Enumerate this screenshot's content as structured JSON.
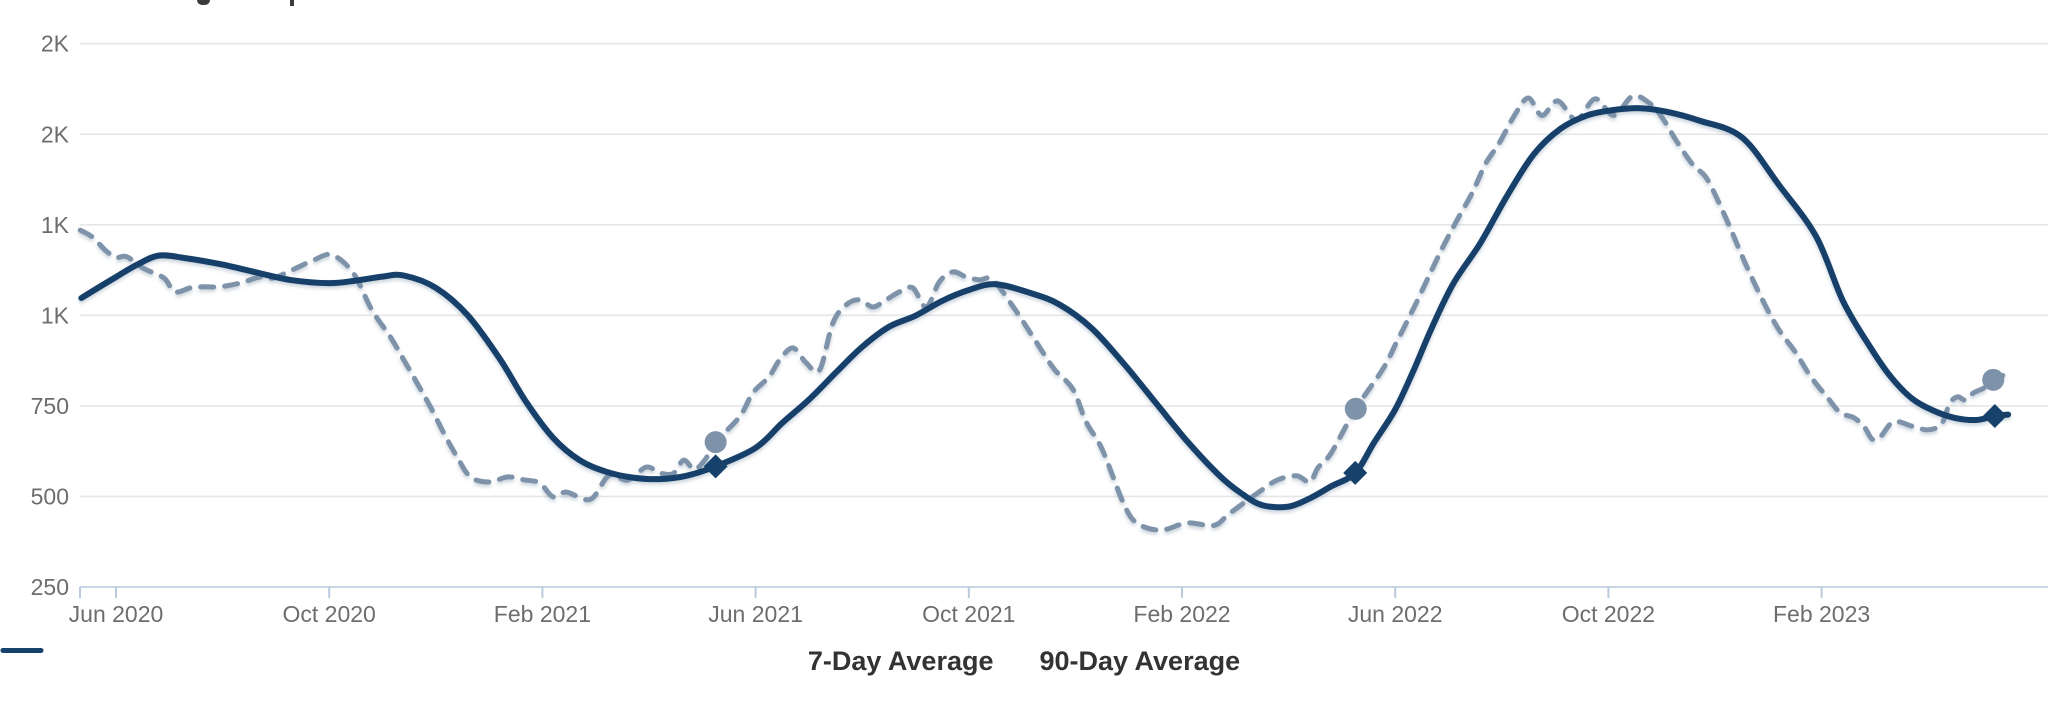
{
  "theme": {
    "background": "#FFFFFF",
    "grid_color": "#E6E6E6",
    "axis_line_color": "#C9D6E6",
    "tick_color": "#B9CADE",
    "label_color": "#6D6D6D",
    "legend_text_color": "#333333",
    "seven_day_color": "#7E93A9",
    "ninety_day_color": "#15416B"
  },
  "legend": {
    "items": [
      {
        "label": "7-Day Average",
        "swatch": "dashed-line-swatch"
      },
      {
        "label": "90-Day Average",
        "swatch": "solid-line-swatch"
      }
    ]
  },
  "chart_data": {
    "type": "line",
    "title": "",
    "x_unit": "months_since_May_2020",
    "grid": true,
    "legend_position": "bottom-center",
    "x_ticks": [
      {
        "label": "Jun 2020",
        "month": 1
      },
      {
        "label": "Oct 2020",
        "month": 5
      },
      {
        "label": "Feb 2021",
        "month": 9
      },
      {
        "label": "Jun 2021",
        "month": 13
      },
      {
        "label": "Oct 2021",
        "month": 17
      },
      {
        "label": "Feb 2022",
        "month": 21
      },
      {
        "label": "Jun 2022",
        "month": 25
      },
      {
        "label": "Oct 2022",
        "month": 29
      },
      {
        "label": "Feb 2023",
        "month": 33
      }
    ],
    "y_ticks": [
      {
        "label": "250",
        "value": 250
      },
      {
        "label": "500",
        "value": 500
      },
      {
        "label": "750",
        "value": 750
      },
      {
        "label": "1K",
        "value": 1000
      },
      {
        "label": "1K",
        "value": 1250
      },
      {
        "label": "2K",
        "value": 1500
      },
      {
        "label": "2K",
        "value": 1750
      }
    ],
    "ylim": [
      205,
      1810
    ],
    "series": [
      {
        "name": "7-Day Average",
        "style": "dashed",
        "color": "#7E93A9",
        "points": [
          [
            0.33,
            1235
          ],
          [
            0.55,
            1217
          ],
          [
            0.8,
            1180
          ],
          [
            1.0,
            1160
          ],
          [
            1.2,
            1162
          ],
          [
            1.5,
            1131
          ],
          [
            1.9,
            1103
          ],
          [
            2.1,
            1065
          ],
          [
            2.4,
            1076
          ],
          [
            2.65,
            1079
          ],
          [
            2.95,
            1079
          ],
          [
            3.35,
            1090
          ],
          [
            3.7,
            1106
          ],
          [
            3.95,
            1103
          ],
          [
            4.3,
            1125
          ],
          [
            4.7,
            1152
          ],
          [
            5.05,
            1167
          ],
          [
            5.45,
            1117
          ],
          [
            5.8,
            1015
          ],
          [
            6.15,
            940
          ],
          [
            6.4,
            877
          ],
          [
            6.65,
            813
          ],
          [
            6.9,
            747
          ],
          [
            7.15,
            675
          ],
          [
            7.4,
            609
          ],
          [
            7.65,
            554
          ],
          [
            8.0,
            540
          ],
          [
            8.35,
            554
          ],
          [
            8.65,
            546
          ],
          [
            8.95,
            537
          ],
          [
            9.2,
            499
          ],
          [
            9.45,
            512
          ],
          [
            9.9,
            492
          ],
          [
            10.25,
            558
          ],
          [
            10.6,
            545
          ],
          [
            10.95,
            581
          ],
          [
            11.2,
            565
          ],
          [
            11.45,
            563
          ],
          [
            11.65,
            600
          ],
          [
            11.85,
            575
          ],
          [
            12.05,
            601
          ],
          [
            12.25,
            650
          ],
          [
            12.7,
            720
          ],
          [
            12.95,
            786
          ],
          [
            13.25,
            830
          ],
          [
            13.45,
            877
          ],
          [
            13.7,
            910
          ],
          [
            13.95,
            869
          ],
          [
            14.2,
            849
          ],
          [
            14.45,
            979
          ],
          [
            14.7,
            1029
          ],
          [
            14.95,
            1043
          ],
          [
            15.2,
            1023
          ],
          [
            15.45,
            1043
          ],
          [
            15.7,
            1065
          ],
          [
            15.95,
            1076
          ],
          [
            16.2,
            1023
          ],
          [
            16.45,
            1093
          ],
          [
            16.7,
            1120
          ],
          [
            16.95,
            1106
          ],
          [
            17.2,
            1098
          ],
          [
            17.45,
            1098
          ],
          [
            17.85,
            1020
          ],
          [
            18.25,
            930
          ],
          [
            18.6,
            852
          ],
          [
            18.95,
            797
          ],
          [
            19.2,
            706
          ],
          [
            19.5,
            631
          ],
          [
            19.9,
            482
          ],
          [
            20.15,
            427
          ],
          [
            20.6,
            407
          ],
          [
            21.1,
            427
          ],
          [
            21.6,
            420
          ],
          [
            21.9,
            454
          ],
          [
            22.5,
            518
          ],
          [
            22.8,
            546
          ],
          [
            23.15,
            557
          ],
          [
            23.4,
            540
          ],
          [
            23.55,
            579
          ],
          [
            23.8,
            620
          ],
          [
            24.26,
            742
          ],
          [
            24.77,
            852
          ],
          [
            25.03,
            927
          ],
          [
            25.35,
            1021
          ],
          [
            25.65,
            1114
          ],
          [
            25.9,
            1190
          ],
          [
            26.15,
            1260
          ],
          [
            26.45,
            1340
          ],
          [
            26.7,
            1420
          ],
          [
            26.95,
            1475
          ],
          [
            27.25,
            1555
          ],
          [
            27.5,
            1600
          ],
          [
            27.75,
            1552
          ],
          [
            28.05,
            1592
          ],
          [
            28.4,
            1540
          ],
          [
            28.75,
            1598
          ],
          [
            29.1,
            1552
          ],
          [
            29.45,
            1605
          ],
          [
            29.75,
            1588
          ],
          [
            30.0,
            1548
          ],
          [
            30.3,
            1476
          ],
          [
            30.6,
            1413
          ],
          [
            30.85,
            1377
          ],
          [
            31.2,
            1270
          ],
          [
            31.55,
            1150
          ],
          [
            31.9,
            1040
          ],
          [
            32.2,
            960
          ],
          [
            32.5,
            900
          ],
          [
            32.8,
            830
          ],
          [
            33.1,
            775
          ],
          [
            33.35,
            731
          ],
          [
            33.6,
            718
          ],
          [
            33.8,
            692
          ],
          [
            33.95,
            658
          ],
          [
            34.1,
            664
          ],
          [
            34.35,
            706
          ],
          [
            34.7,
            694
          ],
          [
            35.0,
            684
          ],
          [
            35.25,
            700
          ],
          [
            35.4,
            756
          ],
          [
            35.55,
            775
          ],
          [
            35.7,
            766
          ],
          [
            35.85,
            786
          ],
          [
            36.05,
            800
          ],
          [
            36.22,
            822
          ],
          [
            36.4,
            834
          ]
        ]
      },
      {
        "name": "90-Day Average",
        "style": "solid",
        "color": "#15416B",
        "points": [
          [
            0.35,
            1048
          ],
          [
            1.0,
            1106
          ],
          [
            1.4,
            1140
          ],
          [
            1.8,
            1165
          ],
          [
            2.3,
            1158
          ],
          [
            3.0,
            1140
          ],
          [
            3.7,
            1116
          ],
          [
            4.3,
            1097
          ],
          [
            5.0,
            1089
          ],
          [
            5.5,
            1096
          ],
          [
            6.0,
            1107
          ],
          [
            6.4,
            1110
          ],
          [
            7.0,
            1076
          ],
          [
            7.6,
            1000
          ],
          [
            8.2,
            880
          ],
          [
            8.7,
            760
          ],
          [
            9.2,
            662
          ],
          [
            9.7,
            600
          ],
          [
            10.2,
            568
          ],
          [
            10.7,
            552
          ],
          [
            11.2,
            548
          ],
          [
            11.7,
            557
          ],
          [
            12.25,
            583
          ],
          [
            13.0,
            634
          ],
          [
            13.5,
            703
          ],
          [
            14.0,
            767
          ],
          [
            14.5,
            841
          ],
          [
            15.0,
            913
          ],
          [
            15.5,
            968
          ],
          [
            16.0,
            999
          ],
          [
            16.5,
            1040
          ],
          [
            17.0,
            1070
          ],
          [
            17.5,
            1086
          ],
          [
            18.15,
            1062
          ],
          [
            18.7,
            1030
          ],
          [
            19.3,
            965
          ],
          [
            19.9,
            868
          ],
          [
            20.5,
            760
          ],
          [
            21.1,
            652
          ],
          [
            21.7,
            558
          ],
          [
            22.1,
            510
          ],
          [
            22.5,
            476
          ],
          [
            23.0,
            472
          ],
          [
            23.4,
            495
          ],
          [
            23.8,
            528
          ],
          [
            24.25,
            565
          ],
          [
            24.6,
            648
          ],
          [
            25.0,
            740
          ],
          [
            25.35,
            850
          ],
          [
            25.7,
            970
          ],
          [
            26.1,
            1090
          ],
          [
            26.6,
            1200
          ],
          [
            27.1,
            1330
          ],
          [
            27.6,
            1445
          ],
          [
            28.1,
            1515
          ],
          [
            28.6,
            1552
          ],
          [
            29.1,
            1567
          ],
          [
            29.6,
            1572
          ],
          [
            30.1,
            1562
          ],
          [
            30.7,
            1538
          ],
          [
            31.5,
            1492
          ],
          [
            32.2,
            1360
          ],
          [
            32.9,
            1217
          ],
          [
            33.4,
            1040
          ],
          [
            33.9,
            915
          ],
          [
            34.3,
            830
          ],
          [
            34.7,
            770
          ],
          [
            35.1,
            737
          ],
          [
            35.5,
            717
          ],
          [
            35.9,
            711
          ],
          [
            36.25,
            722
          ],
          [
            36.5,
            726
          ]
        ]
      }
    ],
    "markers": [
      {
        "series": "7-Day Average",
        "shape": "circle",
        "month": 12.25,
        "value": 650
      },
      {
        "series": "90-Day Average",
        "shape": "diamond",
        "month": 12.25,
        "value": 583
      },
      {
        "series": "7-Day Average",
        "shape": "circle",
        "month": 24.26,
        "value": 742
      },
      {
        "series": "90-Day Average",
        "shape": "diamond",
        "month": 24.25,
        "value": 565
      },
      {
        "series": "7-Day Average",
        "shape": "circle",
        "month": 36.22,
        "value": 822
      },
      {
        "series": "90-Day Average",
        "shape": "diamond",
        "month": 36.25,
        "value": 722
      }
    ]
  }
}
